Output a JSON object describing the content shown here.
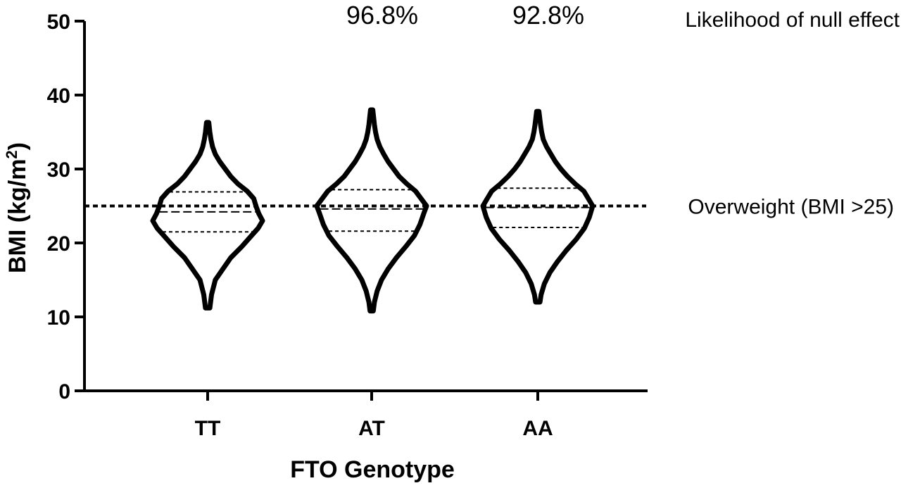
{
  "chart_data": {
    "type": "violin",
    "title": "",
    "xlabel": "FTO Genotype",
    "ylabel": "BMI (kg/m",
    "ylabel_superscript": "2",
    "ylabel_close": ")",
    "ylim": [
      0,
      50
    ],
    "yticks": [
      0,
      10,
      20,
      30,
      40,
      50
    ],
    "ytick_labels": [
      "0",
      "10",
      "20",
      "30",
      "40",
      "50"
    ],
    "categories": [
      "TT",
      "AT",
      "AA"
    ],
    "series": [
      {
        "category": "TT",
        "min": 11.2,
        "max": 36.3,
        "q1": 21.5,
        "median": 24.2,
        "q3": 26.9,
        "profile": [
          [
            11.2,
            0.04
          ],
          [
            13,
            0.07
          ],
          [
            15,
            0.14
          ],
          [
            16.5,
            0.28
          ],
          [
            18,
            0.42
          ],
          [
            19.5,
            0.62
          ],
          [
            21,
            0.8
          ],
          [
            22,
            0.92
          ],
          [
            23,
            1.0
          ],
          [
            24,
            0.93
          ],
          [
            25,
            0.88
          ],
          [
            26,
            0.84
          ],
          [
            27,
            0.72
          ],
          [
            28,
            0.55
          ],
          [
            29,
            0.42
          ],
          [
            30,
            0.32
          ],
          [
            31,
            0.22
          ],
          [
            32,
            0.14
          ],
          [
            33,
            0.09
          ],
          [
            34,
            0.06
          ],
          [
            35,
            0.04
          ],
          [
            36.3,
            0.02
          ]
        ]
      },
      {
        "category": "AT",
        "min": 10.8,
        "max": 38.0,
        "q1": 21.6,
        "median": 24.6,
        "q3": 27.2,
        "profile": [
          [
            10.8,
            0.03
          ],
          [
            12,
            0.05
          ],
          [
            13.5,
            0.1
          ],
          [
            15,
            0.18
          ],
          [
            16.5,
            0.3
          ],
          [
            18,
            0.45
          ],
          [
            19.5,
            0.62
          ],
          [
            21,
            0.78
          ],
          [
            22.5,
            0.88
          ],
          [
            24,
            0.95
          ],
          [
            25,
            1.0
          ],
          [
            26,
            0.9
          ],
          [
            27,
            0.8
          ],
          [
            28,
            0.64
          ],
          [
            29,
            0.5
          ],
          [
            30,
            0.4
          ],
          [
            31,
            0.3
          ],
          [
            32,
            0.22
          ],
          [
            33,
            0.15
          ],
          [
            34,
            0.1
          ],
          [
            35,
            0.07
          ],
          [
            36,
            0.05
          ],
          [
            38.0,
            0.02
          ]
        ]
      },
      {
        "category": "AA",
        "min": 12.0,
        "max": 37.8,
        "q1": 22.1,
        "median": 24.8,
        "q3": 27.4,
        "profile": [
          [
            12,
            0.04
          ],
          [
            13,
            0.06
          ],
          [
            14.5,
            0.12
          ],
          [
            16,
            0.22
          ],
          [
            17.5,
            0.36
          ],
          [
            19,
            0.52
          ],
          [
            20.5,
            0.7
          ],
          [
            22,
            0.85
          ],
          [
            23.5,
            0.94
          ],
          [
            25,
            1.0
          ],
          [
            26,
            0.92
          ],
          [
            27,
            0.84
          ],
          [
            28,
            0.68
          ],
          [
            29,
            0.54
          ],
          [
            30,
            0.42
          ],
          [
            31,
            0.32
          ],
          [
            32,
            0.24
          ],
          [
            33,
            0.16
          ],
          [
            34,
            0.1
          ],
          [
            35,
            0.07
          ],
          [
            36,
            0.05
          ],
          [
            37.8,
            0.02
          ]
        ]
      }
    ],
    "reference_line": {
      "y": 25,
      "label": "Overweight (BMI >25)",
      "style": "dotted"
    },
    "annotations": {
      "header_label": "Likelihood of null effect",
      "values": [
        {
          "category": "AT",
          "text": "96.8%"
        },
        {
          "category": "AA",
          "text": "92.8%"
        }
      ]
    },
    "grid": false,
    "legend": "none",
    "colors": {
      "stroke": "#000000",
      "background": "#ffffff"
    }
  }
}
